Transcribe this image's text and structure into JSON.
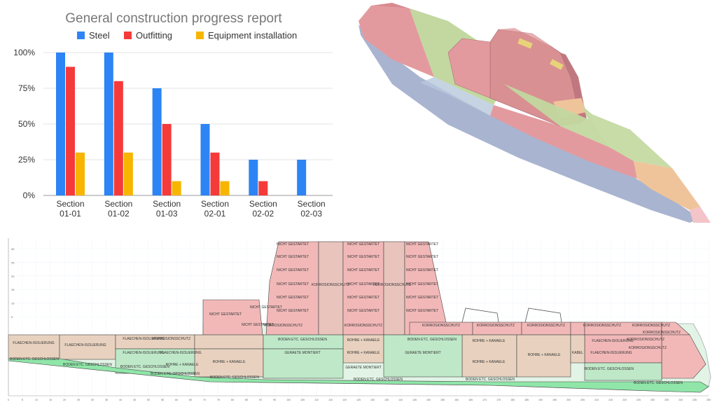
{
  "chart_data": {
    "type": "bar",
    "title": "General construction progress report",
    "categories": [
      [
        "Section",
        "01-01"
      ],
      [
        "Section",
        "01-02"
      ],
      [
        "Section",
        "01-03"
      ],
      [
        "Section",
        "02-01"
      ],
      [
        "Section",
        "02-02"
      ],
      [
        "Section",
        "02-03"
      ]
    ],
    "series": [
      {
        "name": "Steel",
        "color": "#2d84f5",
        "values": [
          100,
          100,
          75,
          50,
          25,
          25
        ]
      },
      {
        "name": "Outfitting",
        "color": "#f53a3a",
        "values": [
          90,
          80,
          50,
          30,
          10,
          0
        ]
      },
      {
        "name": "Equipment installation",
        "color": "#f7b500",
        "values": [
          30,
          30,
          10,
          10,
          0,
          0
        ]
      }
    ],
    "yticks": [
      "100%",
      "75%",
      "50%",
      "25%",
      "0%"
    ],
    "ylim": [
      0,
      100
    ],
    "legend_position": "top"
  },
  "model": {
    "colors": {
      "not_started": "#e39a9e",
      "started": "#c2d8a0",
      "partial": "#efc49a",
      "highlight": "#e8d27a"
    }
  },
  "plan": {
    "colors": {
      "red": "#f2b8b8",
      "tan": "#e8d2bf",
      "green": "#bfe8c8",
      "green_strong": "#8fe6a8",
      "border": "#444444"
    },
    "yticks": [
      "30",
      "25",
      "20",
      "15",
      "10",
      "5"
    ],
    "xticks": [
      "0",
      "5",
      "10",
      "15",
      "20",
      "25",
      "30",
      "35",
      "40",
      "45",
      "50",
      "55",
      "60",
      "65",
      "70",
      "75",
      "80",
      "85",
      "90",
      "95",
      "100",
      "105",
      "110",
      "115",
      "120",
      "125",
      "130",
      "135",
      "140",
      "145",
      "150",
      "155",
      "160",
      "165",
      "170",
      "175",
      "180",
      "185",
      "190",
      "195",
      "200",
      "205",
      "210",
      "215",
      "220",
      "225",
      "230",
      "235",
      "240",
      "245",
      "250"
    ],
    "labels": {
      "nicht_gestartet": "NICHT GESTARTET",
      "korrosionsschutz": "KORROSIONSSCHUTZ",
      "flaechen": "FLAECHEN-ISOLIERUNG",
      "boden": "BODEN ETC. GESCHLOSSEN",
      "rohre": "ROHRE + KANAELE",
      "geraete": "GERAETE MONTIERT",
      "kabel": "KABEL"
    }
  }
}
